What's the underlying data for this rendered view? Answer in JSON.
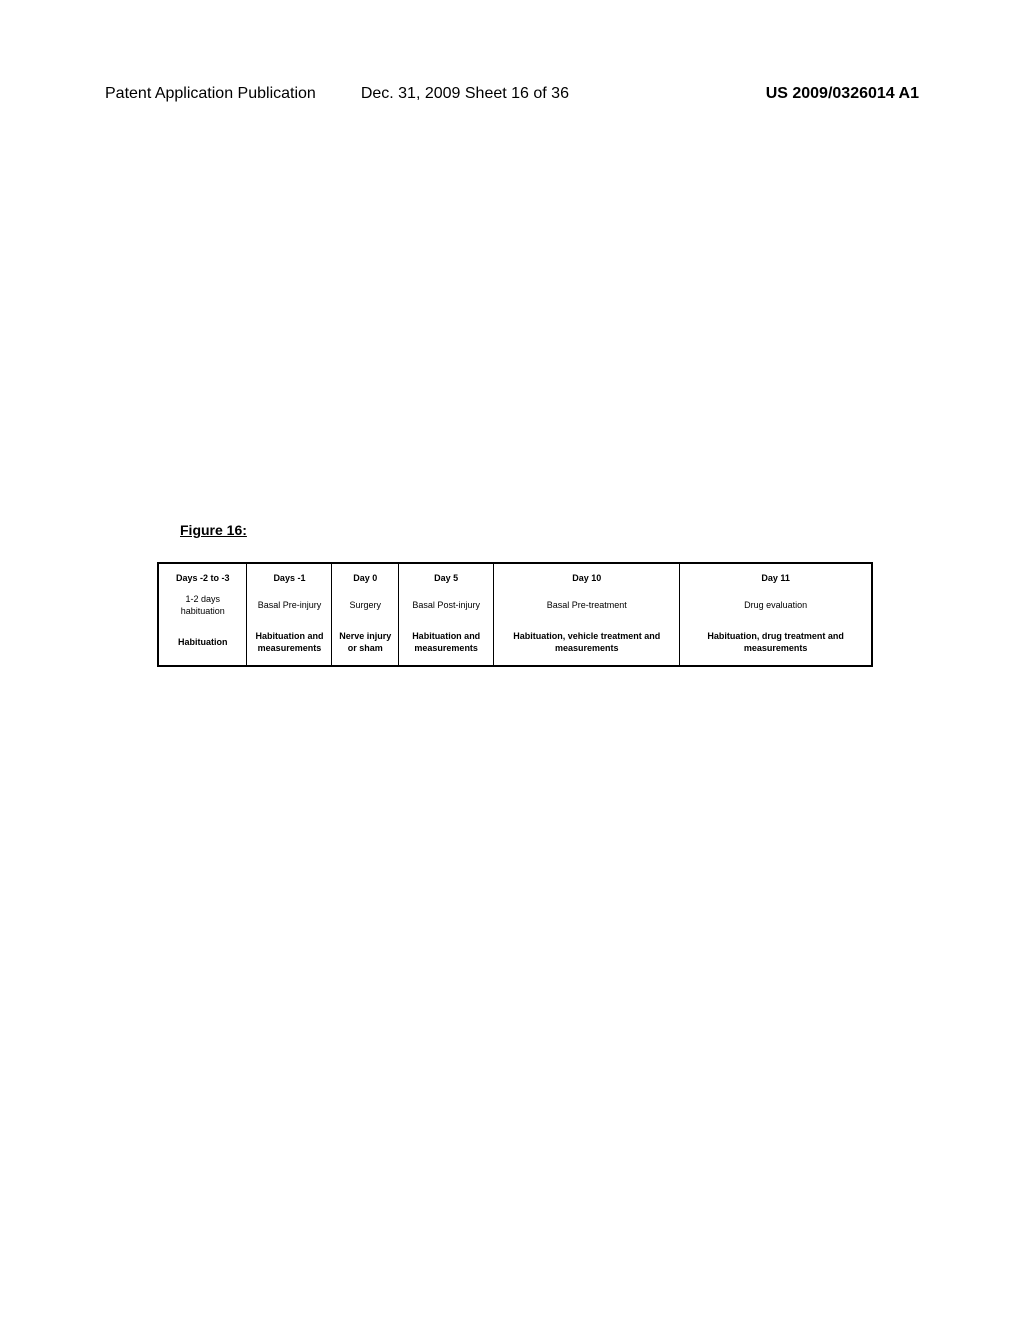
{
  "header": {
    "left": "Patent Application Publication",
    "center": "Dec. 31, 2009  Sheet 16 of 36",
    "right": "US 2009/0326014 A1"
  },
  "figure_label": "Figure 16:",
  "timeline": {
    "columns": [
      {
        "day": "Days -2 to -3",
        "description": "1-2 days habituation",
        "detail": "Habituation"
      },
      {
        "day": "Days -1",
        "description": "Basal Pre-injury",
        "detail": "Habituation and measurements"
      },
      {
        "day": "Day 0",
        "description": "Surgery",
        "detail": "Nerve injury or sham"
      },
      {
        "day": "Day 5",
        "description": "Basal Post-injury",
        "detail": "Habituation and measurements"
      },
      {
        "day": "Day 10",
        "description": "Basal Pre-treatment",
        "detail": "Habituation, vehicle treatment and measurements"
      },
      {
        "day": "Day 11",
        "description": "Drug evaluation",
        "detail": "Habituation, drug treatment and measurements"
      }
    ]
  }
}
